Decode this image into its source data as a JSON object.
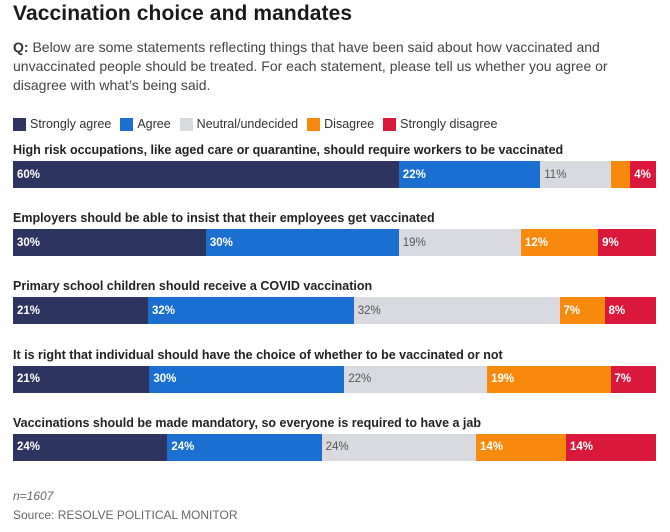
{
  "chart_data": {
    "type": "bar",
    "orientation": "horizontal",
    "stacked": true,
    "title": "Vaccination choice and mandates",
    "subtitle_prefix": "Q:",
    "subtitle": "Below are some statements reflecting things that have been said about how vaccinated and unvaccinated people should be treated. For each statement, please tell us whether you agree or disagree with what’s being said.",
    "legend_position": "top-left",
    "series": [
      {
        "name": "Strongly agree",
        "color": "#2d3460"
      },
      {
        "name": "Agree",
        "color": "#1b6fd1"
      },
      {
        "name": "Neutral/undecided",
        "color": "#d8dae0"
      },
      {
        "name": "Disagree",
        "color": "#f78a0c"
      },
      {
        "name": "Strongly disagree",
        "color": "#d9183b"
      }
    ],
    "categories": [
      "High risk occupations, like aged care or quarantine, should require workers to be vaccinated",
      "Employers should be able to insist that their employees get vaccinated",
      "Primary school children should receive a COVID vaccination",
      "It is right that individual should have the choice of whether to be vaccinated or not",
      "Vaccinations should be made mandatory, so everyone is required to have a jab"
    ],
    "values": [
      [
        60,
        22,
        11,
        3,
        4
      ],
      [
        30,
        30,
        19,
        12,
        9
      ],
      [
        21,
        32,
        32,
        7,
        8
      ],
      [
        21,
        30,
        22,
        19,
        7
      ],
      [
        24,
        24,
        24,
        14,
        14
      ]
    ],
    "labels": [
      [
        "60%",
        "22%",
        "11%",
        "",
        "4%"
      ],
      [
        "30%",
        "30%",
        "19%",
        "12%",
        "9%"
      ],
      [
        "21%",
        "32%",
        "32%",
        "7%",
        "8%"
      ],
      [
        "21%",
        "30%",
        "22%",
        "19%",
        "7%"
      ],
      [
        "24%",
        "24%",
        "24%",
        "14%",
        "14%"
      ]
    ],
    "note": "n=1607",
    "source": "Source: RESOLVE POLITICAL MONITOR"
  }
}
